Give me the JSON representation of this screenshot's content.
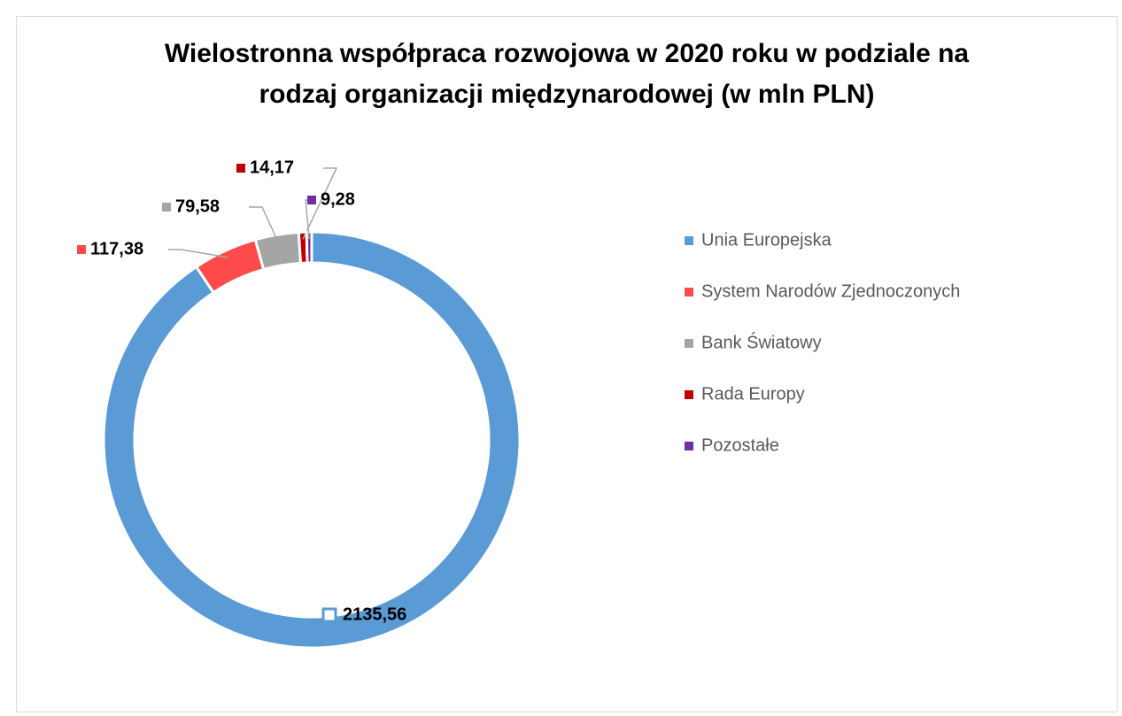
{
  "chart_data": {
    "type": "donut",
    "title": [
      "Wielostronna współpraca rozwojowa w 2020 roku w podziale na",
      "rodzaj organizacji międzynarodowej (w mln PLN)"
    ],
    "categories": [
      "Unia Europejska",
      "System Narodów Zjednoczonych",
      "Bank Światowy",
      "Rada Europy",
      "Pozostałe"
    ],
    "values": [
      2135.56,
      117.38,
      79.58,
      14.17,
      9.28
    ],
    "value_labels": [
      "2135,56",
      "117,38",
      "79,58",
      "14,17",
      "9,28"
    ],
    "colors": [
      "#5b9bd5",
      "#ff4b4b",
      "#a5a5a5",
      "#c00000",
      "#7030a0"
    ],
    "legend": "right"
  }
}
